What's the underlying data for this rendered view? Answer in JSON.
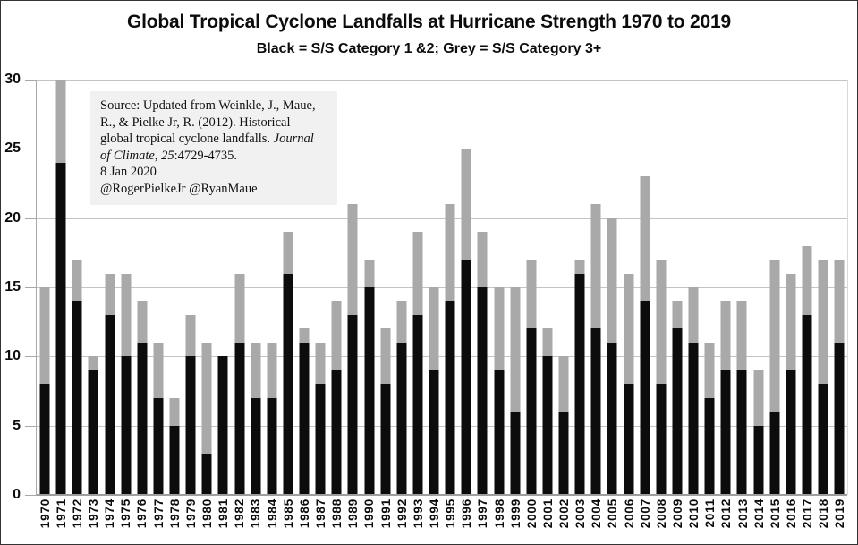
{
  "title": "Global Tropical Cyclone Landfalls at Hurricane Strength 1970 to 2019",
  "subtitle": "Black = S/S Category 1 &2; Grey = S/S Category 3+",
  "source_box": {
    "lines": [
      {
        "segments": [
          {
            "text": "Source: Updated from Weinkle, J., Maue,",
            "italic": false
          }
        ]
      },
      {
        "segments": [
          {
            "text": "R., & Pielke Jr, R. (2012). Historical",
            "italic": false
          }
        ]
      },
      {
        "segments": [
          {
            "text": "global tropical cyclone landfalls. ",
            "italic": false
          },
          {
            "text": "Journal",
            "italic": true
          }
        ]
      },
      {
        "segments": [
          {
            "text": "of Climate",
            "italic": true
          },
          {
            "text": ", ",
            "italic": false
          },
          {
            "text": "25",
            "italic": true
          },
          {
            "text": ":4729-4735.",
            "italic": false
          }
        ]
      },
      {
        "segments": [
          {
            "text": "8 Jan 2020",
            "italic": false
          }
        ]
      },
      {
        "segments": [
          {
            "text": "@RogerPielkeJr @RyanMaue",
            "italic": false
          }
        ]
      }
    ]
  },
  "colors": {
    "category_1_2": "#0c0c0c",
    "category_3_plus": "#a9a9a9",
    "gridline": "#c3c3c3",
    "axis": "#9e9e9e",
    "source_box_background": "#f1f1f1",
    "background": "#ffffff",
    "border": "#333333"
  },
  "chart_data": {
    "type": "bar",
    "stacked": true,
    "title": "Global Tropical Cyclone Landfalls at Hurricane Strength 1970 to 2019",
    "legend_note": "Black = S/S Category 1 &2; Grey = S/S Category 3+",
    "xlabel": "",
    "ylabel": "",
    "ylim": [
      0,
      30
    ],
    "yticks": [
      0,
      5,
      10,
      15,
      20,
      25,
      30
    ],
    "grid": true,
    "x_tick_rotation": 90,
    "categories": [
      "1970",
      "1971",
      "1972",
      "1973",
      "1974",
      "1975",
      "1976",
      "1977",
      "1978",
      "1979",
      "1980",
      "1981",
      "1982",
      "1983",
      "1984",
      "1985",
      "1986",
      "1987",
      "1988",
      "1989",
      "1990",
      "1991",
      "1992",
      "1993",
      "1994",
      "1995",
      "1996",
      "1997",
      "1998",
      "1999",
      "2000",
      "2001",
      "2002",
      "2003",
      "2004",
      "2005",
      "2006",
      "2007",
      "2008",
      "2009",
      "2010",
      "2011",
      "2012",
      "2013",
      "2014",
      "2015",
      "2016",
      "2017",
      "2018",
      "2019"
    ],
    "series": [
      {
        "name": "S/S Category 1 &2",
        "color": "#0c0c0c",
        "values": [
          8,
          24,
          14,
          9,
          13,
          10,
          11,
          7,
          5,
          10,
          3,
          10,
          11,
          7,
          7,
          16,
          11,
          8,
          9,
          13,
          15,
          8,
          11,
          13,
          9,
          14,
          17,
          15,
          9,
          6,
          12,
          10,
          6,
          16,
          12,
          11,
          8,
          14,
          8,
          12,
          11,
          7,
          9,
          9,
          5,
          6,
          9,
          13,
          8,
          11
        ]
      },
      {
        "name": "S/S Category 3+",
        "color": "#a9a9a9",
        "values": [
          7,
          6,
          3,
          1,
          3,
          6,
          3,
          4,
          2,
          3,
          8,
          0,
          5,
          4,
          4,
          3,
          1,
          3,
          5,
          8,
          2,
          4,
          3,
          6,
          6,
          7,
          8,
          4,
          6,
          9,
          5,
          2,
          4,
          1,
          9,
          9,
          8,
          9,
          9,
          2,
          4,
          4,
          5,
          5,
          4,
          11,
          7,
          5,
          9,
          6
        ]
      }
    ],
    "totals": [
      15,
      30,
      17,
      10,
      16,
      16,
      14,
      11,
      7,
      13,
      11,
      10,
      16,
      11,
      11,
      19,
      12,
      11,
      14,
      21,
      17,
      12,
      14,
      19,
      15,
      21,
      25,
      19,
      15,
      15,
      17,
      12,
      10,
      17,
      21,
      20,
      16,
      23,
      17,
      14,
      15,
      11,
      14,
      14,
      9,
      17,
      16,
      18,
      17,
      17
    ]
  }
}
